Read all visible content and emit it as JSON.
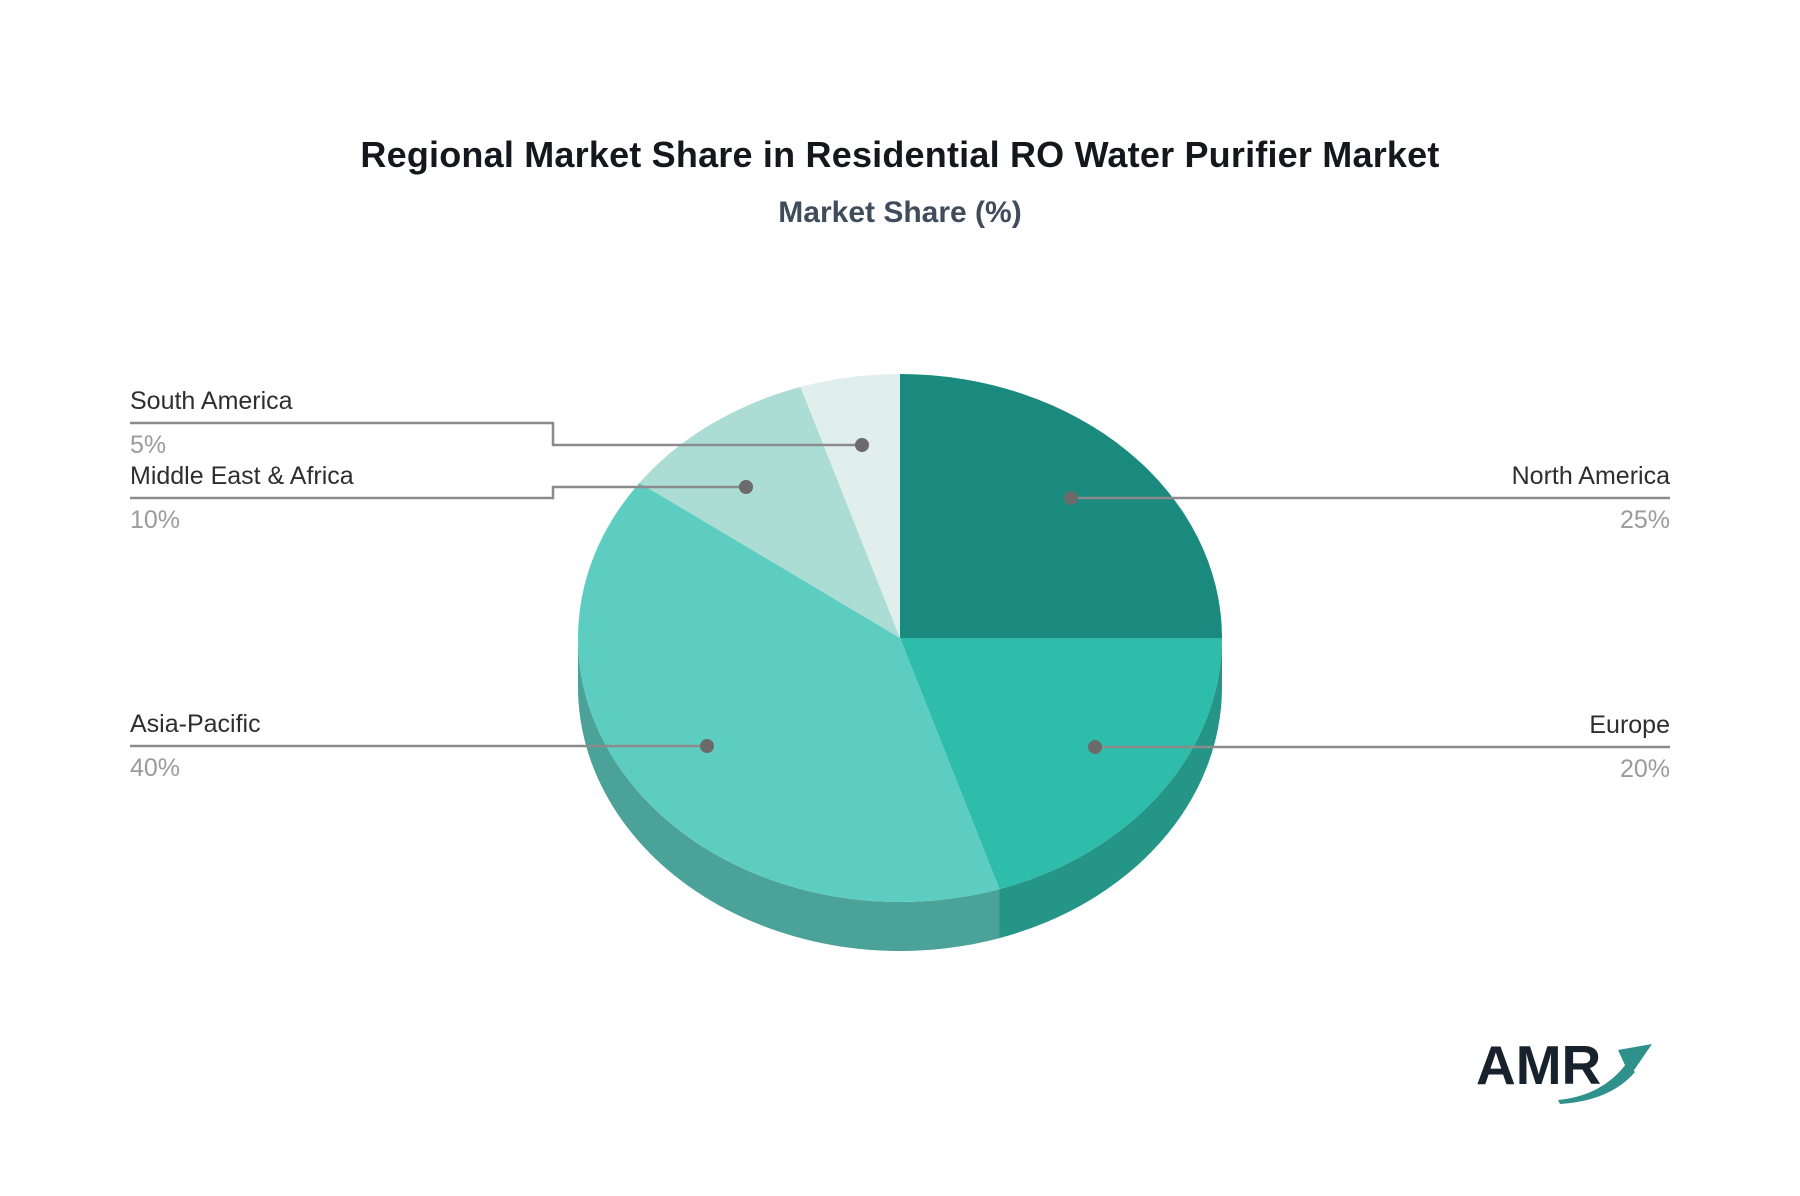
{
  "title": "Regional Market Share in Residential RO Water Purifier Market",
  "subtitle": "Market Share (%)",
  "logo": {
    "text": "AMR"
  },
  "colors": {
    "background": "#ffffff",
    "title_text": "#14181d",
    "subtitle_text": "#3f4c5c",
    "label_text": "#2e2e2e",
    "value_text": "#9b9b9b",
    "leader_line": "#8b8b8b",
    "dot": "#6b6b6b",
    "logo_text": "#18222d",
    "logo_arrow": "#2f918c"
  },
  "chart_data": {
    "type": "pie",
    "style": "3d",
    "title": "Regional Market Share in Residential RO Water Purifier Market",
    "subtitle": "Market Share (%)",
    "unit": "%",
    "start_angle_deg": 0,
    "direction": "clockwise",
    "legend_position": "callout-labels",
    "categories": [
      "North America",
      "Europe",
      "Asia-Pacific",
      "Middle East & Africa",
      "South America"
    ],
    "values": [
      25,
      20,
      40,
      10,
      5
    ],
    "slices": [
      {
        "label": "North America",
        "value": 25,
        "display": "25%",
        "color": "#1A8A7F",
        "side": "right"
      },
      {
        "label": "Europe",
        "value": 20,
        "display": "20%",
        "color": "#2EBCAB",
        "side": "right"
      },
      {
        "label": "Asia-Pacific",
        "value": 40,
        "display": "40%",
        "color": "#5ECDC1",
        "side": "left"
      },
      {
        "label": "Middle East & Africa",
        "value": 10,
        "display": "10%",
        "color": "#ABDDD4",
        "side": "left"
      },
      {
        "label": "South America",
        "value": 5,
        "display": "5%",
        "color": "#E0EEEC",
        "side": "left"
      }
    ]
  }
}
